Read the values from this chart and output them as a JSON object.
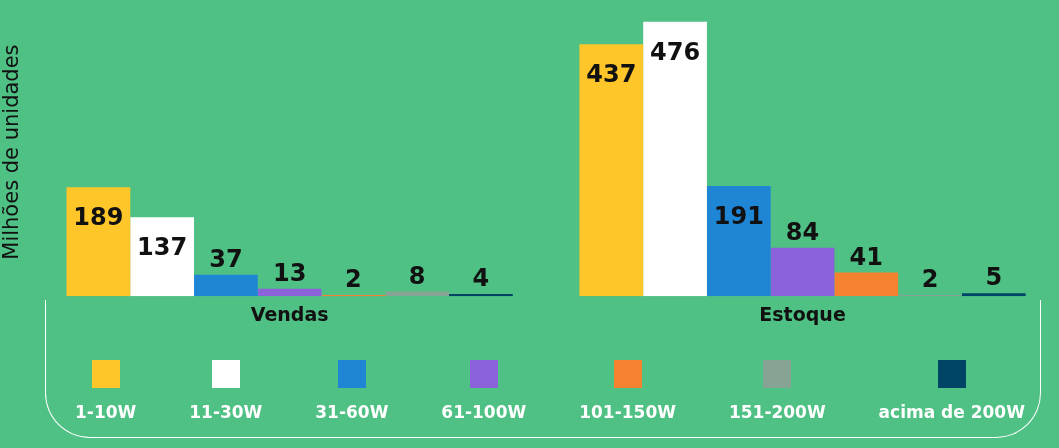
{
  "chart_data": {
    "type": "bar",
    "ylabel": "Milhões de unidades",
    "categories": [
      "Vendas",
      "Estoque"
    ],
    "series": [
      {
        "name": "1-10W",
        "color": "#ffc629",
        "values": [
          189,
          437
        ]
      },
      {
        "name": "11-30W",
        "color": "#ffffff",
        "values": [
          137,
          476
        ]
      },
      {
        "name": "31-60W",
        "color": "#1f86d6",
        "values": [
          37,
          191
        ]
      },
      {
        "name": "61-100W",
        "color": "#8b62d9",
        "values": [
          13,
          84
        ]
      },
      {
        "name": "101-150W",
        "color": "#f5822e",
        "values": [
          2,
          41
        ]
      },
      {
        "name": "151-200W",
        "color": "#86a394",
        "values": [
          8,
          2
        ]
      },
      {
        "name": "acima de 200W",
        "color": "#004466",
        "values": [
          4,
          5
        ]
      }
    ],
    "data_labels": true,
    "legend": "bottom",
    "grid": false
  }
}
